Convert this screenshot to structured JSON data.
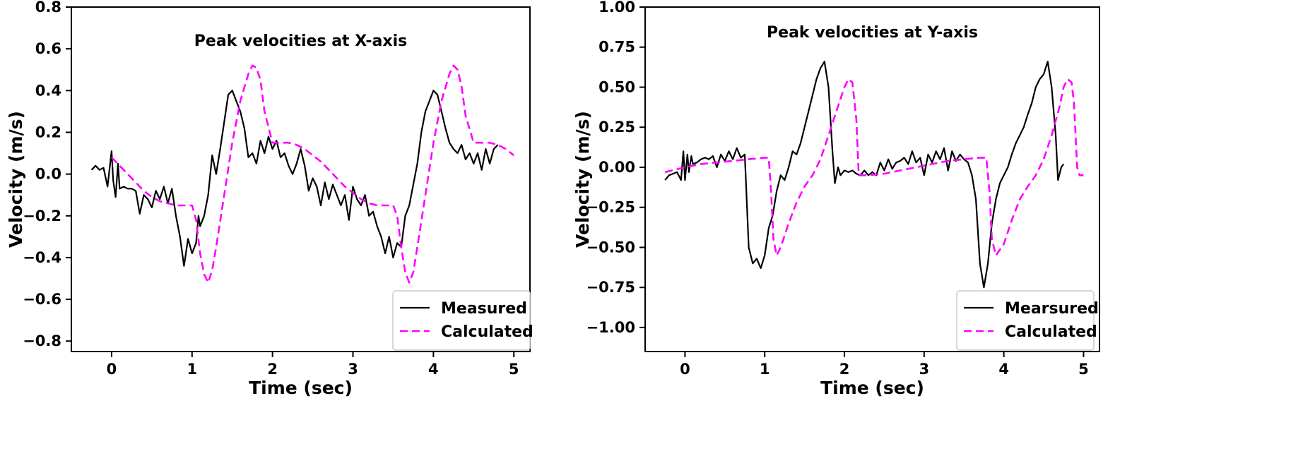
{
  "colors": {
    "measured": "#000000",
    "calculated": "#ff00ff",
    "axes": "#000000",
    "legend_border": "#cccccc"
  },
  "chart_data": [
    {
      "type": "line",
      "title": "Peak velocities at X-axis",
      "xlabel": "Time (sec)",
      "ylabel": "Velocity (m/s)",
      "xlim": [
        -0.5,
        5.2
      ],
      "ylim": [
        -0.85,
        0.8
      ],
      "xticks": [
        0,
        1,
        2,
        3,
        4,
        5
      ],
      "xtick_labels": [
        "0",
        "1",
        "2",
        "3",
        "4",
        "5"
      ],
      "yticks": [
        -0.8,
        -0.6,
        -0.4,
        -0.2,
        0.0,
        0.2,
        0.4,
        0.6,
        0.8
      ],
      "ytick_labels": [
        "−0.8",
        "−0.6",
        "−0.4",
        "−0.2",
        "0.0",
        "0.2",
        "0.4",
        "0.6",
        "0.8"
      ],
      "grid": false,
      "legend_position": "lower-right",
      "series": [
        {
          "name": "Measured",
          "style": "solid",
          "color": "#000000",
          "x": [
            -0.25,
            -0.2,
            -0.15,
            -0.1,
            -0.05,
            0.0,
            0.02,
            0.05,
            0.08,
            0.1,
            0.15,
            0.2,
            0.25,
            0.3,
            0.35,
            0.4,
            0.45,
            0.5,
            0.55,
            0.6,
            0.65,
            0.7,
            0.75,
            0.8,
            0.85,
            0.9,
            0.95,
            1.0,
            1.05,
            1.08,
            1.1,
            1.15,
            1.2,
            1.25,
            1.3,
            1.35,
            1.4,
            1.45,
            1.5,
            1.55,
            1.6,
            1.65,
            1.7,
            1.75,
            1.8,
            1.85,
            1.9,
            1.95,
            2.0,
            2.05,
            2.1,
            2.15,
            2.2,
            2.25,
            2.3,
            2.35,
            2.4,
            2.45,
            2.5,
            2.55,
            2.6,
            2.65,
            2.7,
            2.75,
            2.8,
            2.85,
            2.9,
            2.95,
            3.0,
            3.05,
            3.1,
            3.15,
            3.2,
            3.25,
            3.3,
            3.35,
            3.4,
            3.45,
            3.5,
            3.55,
            3.6,
            3.65,
            3.7,
            3.75,
            3.8,
            3.85,
            3.9,
            3.95,
            4.0,
            4.05,
            4.1,
            4.15,
            4.2,
            4.25,
            4.3,
            4.35,
            4.4,
            4.45,
            4.5,
            4.55,
            4.6,
            4.65,
            4.7,
            4.75,
            4.8
          ],
          "y": [
            0.02,
            0.04,
            0.02,
            0.03,
            -0.06,
            0.11,
            -0.03,
            -0.11,
            0.05,
            -0.07,
            -0.06,
            -0.07,
            -0.07,
            -0.08,
            -0.19,
            -0.1,
            -0.12,
            -0.16,
            -0.08,
            -0.12,
            -0.06,
            -0.14,
            -0.07,
            -0.2,
            -0.3,
            -0.44,
            -0.31,
            -0.38,
            -0.33,
            -0.2,
            -0.25,
            -0.2,
            -0.1,
            0.09,
            0.0,
            0.12,
            0.25,
            0.38,
            0.4,
            0.35,
            0.3,
            0.22,
            0.08,
            0.1,
            0.05,
            0.16,
            0.1,
            0.18,
            0.12,
            0.16,
            0.08,
            0.1,
            0.04,
            0.0,
            0.05,
            0.12,
            0.04,
            -0.08,
            -0.02,
            -0.06,
            -0.15,
            -0.04,
            -0.12,
            -0.05,
            -0.1,
            -0.15,
            -0.1,
            -0.22,
            -0.06,
            -0.12,
            -0.15,
            -0.1,
            -0.2,
            -0.18,
            -0.25,
            -0.3,
            -0.38,
            -0.3,
            -0.4,
            -0.33,
            -0.35,
            -0.2,
            -0.15,
            -0.05,
            0.05,
            0.2,
            0.3,
            0.35,
            0.4,
            0.38,
            0.3,
            0.22,
            0.15,
            0.12,
            0.1,
            0.14,
            0.07,
            0.1,
            0.05,
            0.1,
            0.02,
            0.12,
            0.05,
            0.12,
            0.14
          ]
        },
        {
          "name": "Calculated",
          "style": "dashed",
          "color": "#ff00ff",
          "x": [
            0.0,
            0.1,
            0.2,
            0.3,
            0.4,
            0.5,
            0.6,
            0.7,
            0.8,
            0.9,
            1.0,
            1.05,
            1.1,
            1.15,
            1.2,
            1.25,
            1.3,
            1.4,
            1.5,
            1.6,
            1.7,
            1.75,
            1.8,
            1.85,
            1.9,
            2.0,
            2.1,
            2.2,
            2.3,
            2.4,
            2.5,
            2.6,
            2.7,
            2.8,
            2.9,
            3.0,
            3.1,
            3.2,
            3.3,
            3.4,
            3.5,
            3.55,
            3.6,
            3.65,
            3.7,
            3.75,
            3.8,
            3.9,
            4.0,
            4.1,
            4.2,
            4.25,
            4.3,
            4.35,
            4.4,
            4.5,
            4.6,
            4.7,
            4.8,
            4.9,
            5.0
          ],
          "y": [
            0.08,
            0.04,
            0.0,
            -0.04,
            -0.08,
            -0.11,
            -0.13,
            -0.14,
            -0.15,
            -0.15,
            -0.15,
            -0.22,
            -0.38,
            -0.48,
            -0.52,
            -0.46,
            -0.35,
            -0.1,
            0.15,
            0.35,
            0.48,
            0.52,
            0.51,
            0.45,
            0.3,
            0.15,
            0.15,
            0.15,
            0.14,
            0.12,
            0.09,
            0.06,
            0.02,
            -0.02,
            -0.06,
            -0.09,
            -0.12,
            -0.14,
            -0.15,
            -0.15,
            -0.15,
            -0.2,
            -0.35,
            -0.47,
            -0.52,
            -0.47,
            -0.35,
            -0.1,
            0.15,
            0.35,
            0.48,
            0.52,
            0.5,
            0.42,
            0.28,
            0.15,
            0.15,
            0.15,
            0.14,
            0.12,
            0.09
          ]
        }
      ]
    },
    {
      "type": "line",
      "title": "Peak velocities at Y-axis",
      "xlabel": "Time (sec)",
      "ylabel": "Velocity (m/s)",
      "xlim": [
        -0.5,
        5.2
      ],
      "ylim": [
        -1.15,
        1.0
      ],
      "xticks": [
        0,
        1,
        2,
        3,
        4,
        5
      ],
      "xtick_labels": [
        "0",
        "1",
        "2",
        "3",
        "4",
        "5"
      ],
      "yticks": [
        -1.0,
        -0.75,
        -0.5,
        -0.25,
        0.0,
        0.25,
        0.5,
        0.75,
        1.0
      ],
      "ytick_labels": [
        "−1.00",
        "−0.75",
        "−0.50",
        "−0.25",
        "0.00",
        "0.25",
        "0.50",
        "0.75",
        "1.00"
      ],
      "grid": false,
      "legend_position": "lower-right",
      "series": [
        {
          "name": "Mearsured",
          "style": "solid",
          "color": "#000000",
          "x": [
            -0.25,
            -0.2,
            -0.15,
            -0.1,
            -0.05,
            -0.02,
            0.0,
            0.03,
            0.05,
            0.08,
            0.1,
            0.15,
            0.2,
            0.25,
            0.3,
            0.35,
            0.4,
            0.45,
            0.5,
            0.55,
            0.6,
            0.65,
            0.7,
            0.75,
            0.8,
            0.85,
            0.9,
            0.95,
            1.0,
            1.05,
            1.1,
            1.15,
            1.2,
            1.25,
            1.3,
            1.35,
            1.4,
            1.45,
            1.5,
            1.55,
            1.6,
            1.65,
            1.7,
            1.75,
            1.8,
            1.85,
            1.88,
            1.92,
            1.95,
            2.0,
            2.05,
            2.1,
            2.15,
            2.2,
            2.25,
            2.3,
            2.35,
            2.4,
            2.45,
            2.5,
            2.55,
            2.6,
            2.65,
            2.7,
            2.75,
            2.8,
            2.85,
            2.9,
            2.95,
            3.0,
            3.05,
            3.1,
            3.15,
            3.2,
            3.25,
            3.3,
            3.35,
            3.4,
            3.45,
            3.5,
            3.55,
            3.6,
            3.65,
            3.7,
            3.75,
            3.8,
            3.85,
            3.9,
            3.95,
            4.0,
            4.05,
            4.1,
            4.15,
            4.2,
            4.25,
            4.3,
            4.35,
            4.4,
            4.45,
            4.5,
            4.55,
            4.6,
            4.65,
            4.68,
            4.72,
            4.75
          ],
          "y": [
            -0.08,
            -0.05,
            -0.04,
            -0.03,
            -0.08,
            0.1,
            -0.08,
            0.08,
            -0.03,
            0.07,
            0.02,
            0.03,
            0.05,
            0.06,
            0.05,
            0.07,
            0.0,
            0.08,
            0.04,
            0.1,
            0.05,
            0.12,
            0.06,
            0.08,
            -0.5,
            -0.6,
            -0.57,
            -0.63,
            -0.55,
            -0.38,
            -0.3,
            -0.15,
            -0.05,
            -0.08,
            0.0,
            0.1,
            0.08,
            0.15,
            0.25,
            0.35,
            0.45,
            0.55,
            0.62,
            0.66,
            0.5,
            0.1,
            -0.1,
            0.0,
            -0.05,
            -0.02,
            -0.03,
            -0.02,
            -0.04,
            -0.05,
            -0.02,
            -0.05,
            -0.03,
            -0.05,
            0.03,
            -0.02,
            0.05,
            -0.01,
            0.03,
            0.04,
            0.06,
            0.02,
            0.1,
            0.03,
            0.06,
            -0.05,
            0.08,
            0.03,
            0.1,
            0.05,
            0.12,
            -0.02,
            0.1,
            0.04,
            0.08,
            0.05,
            0.03,
            -0.05,
            -0.2,
            -0.6,
            -0.75,
            -0.6,
            -0.35,
            -0.2,
            -0.1,
            -0.05,
            0.0,
            0.08,
            0.15,
            0.2,
            0.25,
            0.33,
            0.4,
            0.5,
            0.55,
            0.58,
            0.66,
            0.5,
            0.2,
            -0.08,
            0.0,
            0.02
          ]
        },
        {
          "name": "Calculated",
          "style": "dashed",
          "color": "#ff00ff",
          "x": [
            -0.25,
            0.0,
            0.2,
            0.4,
            0.6,
            0.8,
            1.0,
            1.05,
            1.08,
            1.11,
            1.15,
            1.2,
            1.3,
            1.4,
            1.5,
            1.6,
            1.7,
            1.8,
            1.9,
            2.0,
            2.05,
            2.1,
            2.15,
            2.18,
            2.22,
            2.3,
            2.5,
            2.7,
            2.9,
            3.1,
            3.3,
            3.5,
            3.7,
            3.78,
            3.82,
            3.85,
            3.9,
            4.0,
            4.1,
            4.2,
            4.3,
            4.4,
            4.5,
            4.6,
            4.7,
            4.75,
            4.8,
            4.85,
            4.88,
            4.92,
            4.95,
            5.0
          ],
          "y": [
            -0.03,
            0.0,
            0.02,
            0.03,
            0.04,
            0.05,
            0.06,
            0.06,
            -0.15,
            -0.45,
            -0.55,
            -0.5,
            -0.35,
            -0.22,
            -0.12,
            -0.05,
            0.05,
            0.2,
            0.35,
            0.5,
            0.55,
            0.53,
            0.3,
            -0.05,
            -0.05,
            -0.05,
            -0.04,
            -0.02,
            0.0,
            0.02,
            0.04,
            0.05,
            0.06,
            0.06,
            -0.15,
            -0.45,
            -0.55,
            -0.48,
            -0.33,
            -0.2,
            -0.12,
            -0.05,
            0.05,
            0.2,
            0.38,
            0.5,
            0.55,
            0.53,
            0.4,
            0.0,
            -0.05,
            -0.05
          ]
        }
      ]
    }
  ]
}
